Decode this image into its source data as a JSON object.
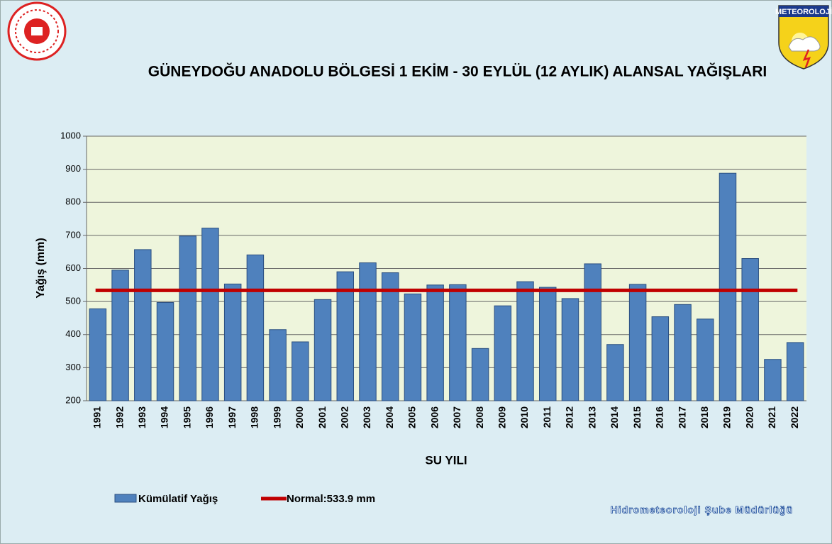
{
  "header": {
    "title": "GÜNEYDOĞU ANADOLU BÖLGESİ  1 EKİM - 30 EYLÜL (12 AYLIK) ALANSAL YAĞIŞLARI",
    "badge": "METEOROLOJİ",
    "footer": "Hidrometeoroloji Şube Müdürlüğü"
  },
  "chart_data": {
    "type": "bar",
    "x_label": "SU YILI",
    "y_label": "Yağış (mm)",
    "categories": [
      "1991",
      "1992",
      "1993",
      "1994",
      "1995",
      "1996",
      "1997",
      "1998",
      "1999",
      "2000",
      "2001",
      "2002",
      "2003",
      "2004",
      "2005",
      "2006",
      "2007",
      "2008",
      "2009",
      "2010",
      "2011",
      "2012",
      "2013",
      "2014",
      "2015",
      "2016",
      "2017",
      "2018",
      "2019",
      "2020",
      "2021",
      "2022"
    ],
    "series": [
      {
        "name": "Kümülatif Yağış",
        "color": "#4f81bd",
        "values": [
          478,
          595,
          657,
          497,
          698,
          722,
          553,
          641,
          415,
          378,
          506,
          590,
          617,
          587,
          523,
          550,
          551,
          358,
          487,
          560,
          543,
          509,
          614,
          370,
          552,
          454,
          491,
          447,
          888,
          630,
          325,
          376
        ]
      }
    ],
    "normal": {
      "name": "Normal:533.9 mm",
      "value": 533.9,
      "color": "#c00000"
    },
    "ylim": [
      200,
      1000
    ],
    "yticks": [
      200,
      300,
      400,
      500,
      600,
      700,
      800,
      900,
      1000
    ],
    "grid": true
  }
}
